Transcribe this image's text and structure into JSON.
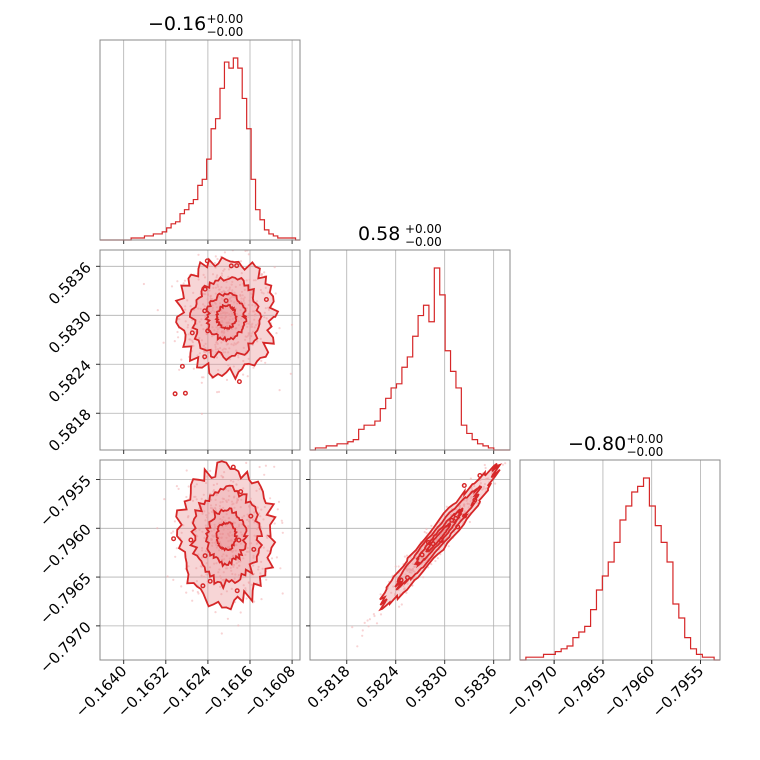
{
  "colors": {
    "line": "#d62728",
    "fill": "#e8868a",
    "scatter": "#f4b5b8",
    "frame": "#888888"
  },
  "chart_data": {
    "type": "corner",
    "parameters": [
      {
        "title": {
          "value": "−0.16",
          "upper": "+0.00",
          "lower": "−0.00"
        },
        "range": [
          -0.16445,
          -0.16065
        ],
        "ticks": [
          -0.164,
          -0.1632,
          -0.1624,
          -0.1616,
          -0.1608
        ],
        "tick_labels": [
          "−0.1640",
          "−0.1632",
          "−0.1624",
          "−0.1616",
          "−0.1608"
        ]
      },
      {
        "title": {
          "value": "0.58",
          "upper": "+0.00",
          "lower": "−0.00"
        },
        "range": [
          0.58135,
          0.5838
        ],
        "ticks": [
          0.5818,
          0.5824,
          0.583,
          0.5836
        ],
        "tick_labels": [
          "0.5818",
          "0.5824",
          "0.5830",
          "0.5836"
        ]
      },
      {
        "title": {
          "value": "−0.80",
          "upper": "+0.00",
          "lower": "−0.00"
        },
        "range": [
          -0.79735,
          -0.7953
        ],
        "ticks": [
          -0.797,
          -0.7965,
          -0.796,
          -0.7955
        ],
        "tick_labels": [
          "−0.7970",
          "−0.7965",
          "−0.7960",
          "−0.7955"
        ]
      }
    ],
    "histograms": [
      {
        "param": 0,
        "bins": [
          -0.16445,
          -0.16065
        ],
        "counts": [
          0,
          0,
          0,
          0,
          0,
          0,
          0,
          1,
          1,
          1,
          2,
          2,
          3,
          3,
          4,
          6,
          8,
          9,
          13,
          15,
          18,
          20,
          27,
          30,
          40,
          55,
          60,
          75,
          88,
          85,
          90,
          85,
          70,
          55,
          30,
          15,
          10,
          5,
          3,
          2,
          1,
          1,
          1,
          1,
          0
        ]
      },
      {
        "param": 1,
        "bins": [
          0.58135,
          0.5838
        ],
        "counts": [
          0,
          1,
          1,
          2,
          2,
          3,
          3,
          4,
          5,
          10,
          12,
          12,
          14,
          20,
          25,
          30,
          32,
          40,
          45,
          55,
          65,
          70,
          62,
          88,
          75,
          48,
          38,
          30,
          12,
          8,
          5,
          3,
          2,
          1,
          0,
          0,
          0
        ]
      },
      {
        "param": 2,
        "bins": [
          -0.79735,
          -0.7953
        ],
        "counts": [
          0,
          1,
          1,
          1,
          2,
          2,
          3,
          4,
          5,
          8,
          10,
          12,
          18,
          25,
          30,
          35,
          42,
          50,
          55,
          60,
          62,
          65,
          55,
          48,
          42,
          35,
          20,
          15,
          8,
          4,
          2,
          1,
          1,
          0
        ]
      }
    ],
    "contour_pairs": [
      {
        "x": 0,
        "y": 1,
        "center": [
          -0.16205,
          0.58298
        ],
        "sd": [
          0.00045,
          0.00035
        ],
        "rho": 0.0
      },
      {
        "x": 0,
        "y": 2,
        "center": [
          -0.16205,
          -0.79608
        ],
        "sd": [
          0.00045,
          0.00035
        ],
        "rho": 0.0
      },
      {
        "x": 1,
        "y": 2,
        "center": [
          0.58292,
          -0.7961
        ],
        "sd": [
          0.00035,
          0.00035
        ],
        "rho": 0.97
      }
    ]
  }
}
